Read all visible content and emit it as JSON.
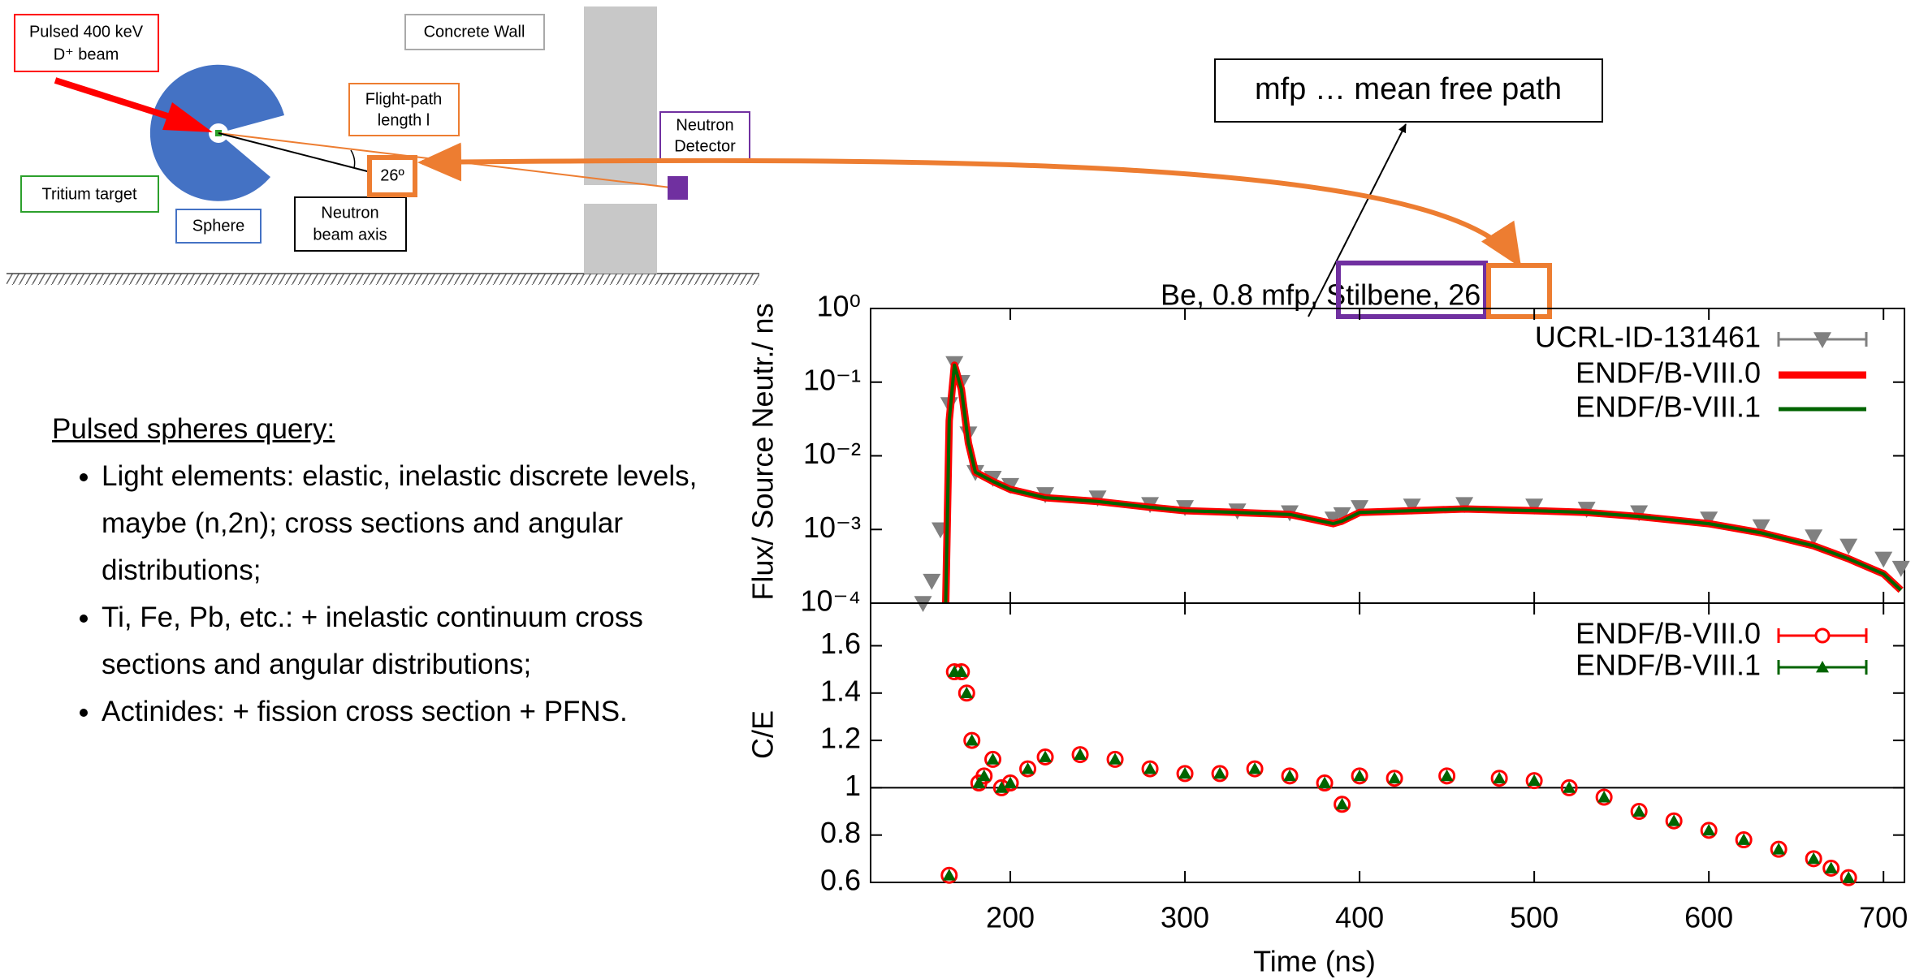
{
  "diagram": {
    "beam_line1": "Pulsed 400 keV",
    "beam_line2": "D⁺ beam",
    "wall": "Concrete Wall",
    "flight_path_line1": "Flight-path",
    "flight_path_line2": "length l",
    "detector_line1": "Neutron",
    "detector_line2": "Detector",
    "target": "Tritium target",
    "sphere": "Sphere",
    "angle": "26º",
    "axis_line1": "Neutron",
    "axis_line2": "beam axis",
    "mfp_note": "mfp … mean free path"
  },
  "notes": {
    "heading": "Pulsed spheres query:",
    "items": [
      "Light elements: elastic, inelastic discrete levels, maybe (n,2n); cross sections and angular distributions;",
      "Ti, Fe, Pb, etc.: + inelastic continuum cross sections and angular distributions;",
      "Actinides: + fission cross section + PFNS."
    ]
  },
  "chart_data": [
    {
      "type": "line",
      "title": "Be, 0.8 mfp, Stilbene, 26",
      "ylabel": "Flux/ Source Neutr./ ns",
      "log_y": true,
      "show_x_tick_labels": false,
      "xlim": [
        120,
        712
      ],
      "xticks": [
        200,
        300,
        400,
        500,
        600,
        700
      ],
      "ylim": [
        0.0001,
        1
      ],
      "yticks": [
        {
          "value": 1,
          "label": "10⁰"
        },
        {
          "value": 0.1,
          "label": "10⁻¹"
        },
        {
          "value": 0.01,
          "label": "10⁻²"
        },
        {
          "value": 0.001,
          "label": "10⁻³"
        },
        {
          "value": 0.0001,
          "label": "10⁻⁴"
        }
      ],
      "legend": "top-right",
      "series": [
        {
          "name": "UCRL-ID-131461",
          "color": "#808080",
          "style": "triangle-down",
          "x": [
            150,
            155,
            160,
            165,
            168,
            172,
            176,
            180,
            190,
            200,
            220,
            250,
            280,
            300,
            330,
            360,
            385,
            390,
            400,
            430,
            460,
            500,
            530,
            560,
            600,
            630,
            660,
            680,
            700,
            710
          ],
          "values": [
            0.0001,
            0.0002,
            0.001,
            0.05,
            0.18,
            0.1,
            0.02,
            0.006,
            0.005,
            0.004,
            0.003,
            0.0027,
            0.0022,
            0.002,
            0.0018,
            0.0017,
            0.0014,
            0.0016,
            0.002,
            0.0021,
            0.0022,
            0.0021,
            0.0019,
            0.0017,
            0.0014,
            0.0011,
            0.0008,
            0.0006,
            0.0004,
            0.0003
          ]
        },
        {
          "name": "ENDF/B-VIII.0",
          "color": "#ff0000",
          "style": "line-thick",
          "x": [
            163,
            165,
            168,
            172,
            176,
            180,
            190,
            200,
            220,
            250,
            280,
            300,
            330,
            360,
            385,
            390,
            400,
            430,
            460,
            500,
            530,
            560,
            600,
            630,
            660,
            680,
            700,
            710
          ],
          "values": [
            0.0001,
            0.03,
            0.17,
            0.08,
            0.015,
            0.006,
            0.0045,
            0.0035,
            0.0027,
            0.0024,
            0.002,
            0.0018,
            0.0017,
            0.0016,
            0.0012,
            0.0013,
            0.0017,
            0.0018,
            0.0019,
            0.0018,
            0.0017,
            0.0015,
            0.0012,
            0.0009,
            0.0006,
            0.0004,
            0.00025,
            0.00015
          ]
        },
        {
          "name": "ENDF/B-VIII.1",
          "color": "#006400",
          "style": "line",
          "x": [
            163,
            165,
            168,
            172,
            176,
            180,
            190,
            200,
            220,
            250,
            280,
            300,
            330,
            360,
            385,
            390,
            400,
            430,
            460,
            500,
            530,
            560,
            600,
            630,
            660,
            680,
            700,
            710
          ],
          "values": [
            0.0001,
            0.03,
            0.17,
            0.08,
            0.015,
            0.006,
            0.0045,
            0.0035,
            0.0027,
            0.0024,
            0.002,
            0.0018,
            0.0017,
            0.0016,
            0.0012,
            0.0013,
            0.0017,
            0.0018,
            0.0019,
            0.0018,
            0.0017,
            0.0015,
            0.0012,
            0.0009,
            0.0006,
            0.0004,
            0.00025,
            0.00015
          ]
        }
      ]
    },
    {
      "type": "scatter",
      "xlabel": "Time (ns)",
      "ylabel": "C/E",
      "log_y": false,
      "show_x_tick_labels": true,
      "xlim": [
        120,
        712
      ],
      "xticks": [
        200,
        300,
        400,
        500,
        600,
        700
      ],
      "ylim": [
        0.6,
        1.78
      ],
      "yticks": [
        0.6,
        0.8,
        1,
        1.2,
        1.4,
        1.6
      ],
      "reference_line": 1,
      "legend": "top-right",
      "series": [
        {
          "name": "ENDF/B-VIII.0",
          "color": "#ff0000",
          "style": "circle-open",
          "x": [
            165,
            168,
            172,
            175,
            178,
            182,
            185,
            190,
            195,
            200,
            210,
            220,
            240,
            260,
            280,
            300,
            320,
            340,
            360,
            380,
            390,
            400,
            420,
            450,
            480,
            500,
            520,
            540,
            560,
            580,
            600,
            620,
            640,
            660,
            670,
            680
          ],
          "values": [
            0.63,
            1.49,
            1.49,
            1.4,
            1.2,
            1.02,
            1.05,
            1.12,
            1.0,
            1.02,
            1.08,
            1.13,
            1.14,
            1.12,
            1.08,
            1.06,
            1.06,
            1.08,
            1.05,
            1.02,
            0.93,
            1.05,
            1.04,
            1.05,
            1.04,
            1.03,
            1.0,
            0.96,
            0.9,
            0.86,
            0.82,
            0.78,
            0.74,
            0.7,
            0.66,
            0.62
          ]
        },
        {
          "name": "ENDF/B-VIII.1",
          "color": "#006400",
          "style": "triangle-up",
          "x": [
            165,
            168,
            172,
            175,
            178,
            182,
            185,
            190,
            195,
            200,
            210,
            220,
            240,
            260,
            280,
            300,
            320,
            340,
            360,
            380,
            390,
            400,
            420,
            450,
            480,
            500,
            520,
            540,
            560,
            580,
            600,
            620,
            640,
            660,
            670,
            680
          ],
          "values": [
            0.63,
            1.49,
            1.49,
            1.4,
            1.2,
            1.02,
            1.05,
            1.12,
            1.0,
            1.02,
            1.08,
            1.13,
            1.14,
            1.12,
            1.08,
            1.06,
            1.06,
            1.08,
            1.05,
            1.02,
            0.93,
            1.05,
            1.04,
            1.05,
            1.04,
            1.03,
            1.0,
            0.96,
            0.9,
            0.86,
            0.82,
            0.78,
            0.74,
            0.7,
            0.66,
            0.62
          ]
        }
      ]
    }
  ]
}
